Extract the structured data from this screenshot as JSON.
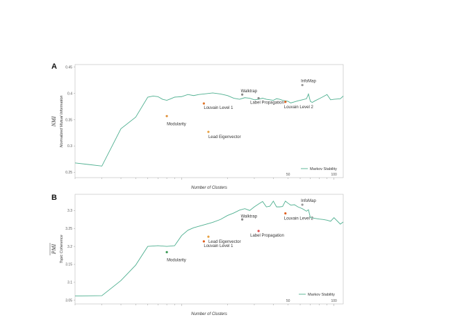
{
  "chart_data": [
    {
      "type": "line",
      "panel": "A",
      "ysymbol": "NMI",
      "ylabel": "Normalized Mutual Information",
      "xlabel": "Number of Clusters",
      "xscale": "log",
      "xlim": [
        2,
        115
      ],
      "ylim": [
        0.24,
        0.455
      ],
      "yticks": [
        0.25,
        0.3,
        0.35,
        0.4,
        0.45
      ],
      "ytick_labels": [
        "0.25",
        "0.3",
        "0.35",
        "0.4",
        "0.45"
      ],
      "xticks": [
        50,
        100
      ],
      "xtick_labels": [
        "50",
        "100"
      ],
      "legend": "bottom-right",
      "series": [
        {
          "name": "Markov Stability",
          "color": "#4daf8f",
          "x": [
            2,
            3,
            4,
            5,
            6,
            6.5,
            7,
            7.5,
            8,
            8.5,
            9,
            10,
            11,
            12,
            13,
            14,
            16,
            18,
            20,
            22,
            24,
            26,
            28,
            30,
            32,
            34,
            36,
            38,
            40,
            42,
            44,
            46,
            48,
            50,
            52,
            55,
            58,
            62,
            66,
            68,
            70,
            72,
            75,
            80,
            85,
            90,
            95,
            100,
            110,
            115
          ],
          "y": [
            0.268,
            0.262,
            0.333,
            0.355,
            0.393,
            0.395,
            0.394,
            0.389,
            0.387,
            0.39,
            0.393,
            0.394,
            0.398,
            0.396,
            0.398,
            0.399,
            0.401,
            0.399,
            0.396,
            0.391,
            0.389,
            0.392,
            0.391,
            0.388,
            0.389,
            0.391,
            0.389,
            0.388,
            0.387,
            0.39,
            0.389,
            0.387,
            0.386,
            0.385,
            0.382,
            0.384,
            0.386,
            0.388,
            0.39,
            0.399,
            0.385,
            0.383,
            0.386,
            0.39,
            0.394,
            0.398,
            0.388,
            0.389,
            0.39,
            0.395
          ]
        }
      ],
      "points": [
        {
          "label": "Modularity",
          "x": 8,
          "y": 0.357,
          "color": "#e0913b"
        },
        {
          "label": "Louvain Level 1",
          "x": 14,
          "y": 0.381,
          "color": "#e0782e"
        },
        {
          "label": "Lead Eigenvector",
          "x": 15,
          "y": 0.327,
          "color": "#e8a040"
        },
        {
          "label": "Walktrap",
          "x": 25,
          "y": 0.398,
          "color": "#888888"
        },
        {
          "label": "Label Propagation",
          "x": 32,
          "y": 0.391,
          "color": "#888888"
        },
        {
          "label": "Louvain Level 2",
          "x": 48,
          "y": 0.384,
          "color": "#e06020"
        },
        {
          "label": "InfoMap",
          "x": 62,
          "y": 0.416,
          "color": "#9a9a9a"
        }
      ]
    },
    {
      "type": "line",
      "panel": "B",
      "ysymbol": "PMI",
      "ylabel": "Topic Coherence",
      "xlabel": "Number of Clusters",
      "xscale": "log",
      "xlim": [
        2,
        115
      ],
      "ylim": [
        3.04,
        3.345
      ],
      "yticks": [
        3.05,
        3.1,
        3.15,
        3.2,
        3.25,
        3.3
      ],
      "ytick_labels": [
        "3.05",
        "3.1",
        "3.15",
        "3.2",
        "3.25",
        "3.3"
      ],
      "xticks": [
        50,
        100
      ],
      "xtick_labels": [
        "50",
        "100"
      ],
      "legend": "bottom-right",
      "series": [
        {
          "name": "Markov Stability",
          "color": "#4daf8f",
          "x": [
            2,
            3,
            4,
            5,
            6,
            7,
            8,
            9,
            10,
            11,
            12,
            13,
            14,
            16,
            18,
            20,
            22,
            24,
            26,
            28,
            30,
            32,
            34,
            36,
            38,
            40,
            42,
            44,
            46,
            48,
            50,
            52,
            55,
            58,
            62,
            66,
            68,
            70,
            75,
            80,
            85,
            90,
            95,
            100,
            110,
            115
          ],
          "y": [
            3.062,
            3.063,
            3.105,
            3.148,
            3.2,
            3.202,
            3.2,
            3.202,
            3.23,
            3.245,
            3.252,
            3.256,
            3.26,
            3.267,
            3.275,
            3.286,
            3.293,
            3.301,
            3.305,
            3.3,
            3.31,
            3.318,
            3.325,
            3.31,
            3.312,
            3.326,
            3.31,
            3.31,
            3.311,
            3.326,
            3.32,
            3.315,
            3.316,
            3.31,
            3.305,
            3.298,
            3.302,
            3.28,
            3.278,
            3.276,
            3.275,
            3.273,
            3.27,
            3.28,
            3.262,
            3.268
          ]
        }
      ],
      "points": [
        {
          "label": "Modularity",
          "x": 8,
          "y": 3.184,
          "color": "#3a9a55"
        },
        {
          "label": "Louvain Level 1",
          "x": 14,
          "y": 3.214,
          "color": "#e06020"
        },
        {
          "label": "Lead Eigenvector",
          "x": 15,
          "y": 3.227,
          "color": "#e8a040"
        },
        {
          "label": "Walktrap",
          "x": 25,
          "y": 3.275,
          "color": "#888888"
        },
        {
          "label": "Label Propagation",
          "x": 32,
          "y": 3.243,
          "color": "#e05050"
        },
        {
          "label": "Louvain Level 2",
          "x": 48,
          "y": 3.292,
          "color": "#e06020"
        },
        {
          "label": "InfoMap",
          "x": 62,
          "y": 3.316,
          "color": "#9a9a9a"
        }
      ]
    }
  ]
}
